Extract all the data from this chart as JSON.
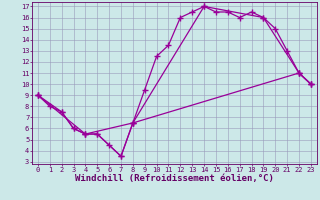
{
  "xlabel": "Windchill (Refroidissement éolien,°C)",
  "background_color": "#cce8e8",
  "grid_color": "#9999bb",
  "line_color": "#990099",
  "xlim": [
    -0.5,
    23.5
  ],
  "ylim": [
    2.8,
    17.4
  ],
  "xticks": [
    0,
    1,
    2,
    3,
    4,
    5,
    6,
    7,
    8,
    9,
    10,
    11,
    12,
    13,
    14,
    15,
    16,
    17,
    18,
    19,
    20,
    21,
    22,
    23
  ],
  "yticks": [
    3,
    4,
    5,
    6,
    7,
    8,
    9,
    10,
    11,
    12,
    13,
    14,
    15,
    16,
    17
  ],
  "line1_x": [
    0,
    1,
    2,
    3,
    4,
    5,
    6,
    7,
    8,
    9,
    10,
    11,
    12,
    13,
    14,
    15,
    16,
    17,
    18,
    19,
    20,
    21,
    22,
    23
  ],
  "line1_y": [
    9.0,
    8.0,
    7.5,
    6.0,
    5.5,
    5.5,
    4.5,
    3.5,
    6.5,
    9.5,
    12.5,
    13.5,
    16.0,
    16.5,
    17.0,
    16.5,
    16.5,
    16.0,
    16.5,
    16.0,
    15.0,
    13.0,
    11.0,
    10.0
  ],
  "line2_x": [
    0,
    2,
    3,
    4,
    5,
    7,
    8,
    22,
    23
  ],
  "line2_y": [
    9.0,
    7.5,
    6.0,
    5.5,
    5.5,
    3.5,
    6.5,
    11.0,
    10.0
  ],
  "line3_x": [
    0,
    4,
    8,
    14,
    19,
    22,
    23
  ],
  "line3_y": [
    9.0,
    5.5,
    6.5,
    17.0,
    16.0,
    11.0,
    10.0
  ],
  "marker": "+",
  "markersize": 4.0,
  "linewidth": 0.9,
  "tick_fontsize": 5.0,
  "label_fontsize": 6.5
}
